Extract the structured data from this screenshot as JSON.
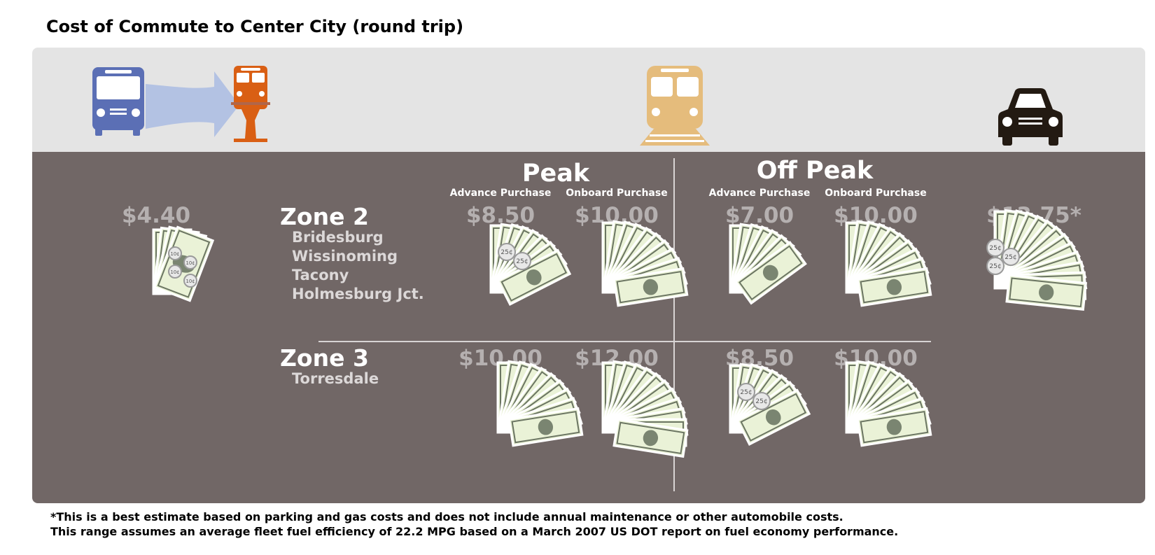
{
  "title": "Cost of Commute to Center City (round trip)",
  "icons": {
    "bus": "bus-icon",
    "trolley": "trolley-icon",
    "train": "regional-rail-icon",
    "car": "car-icon",
    "arrow": "transfer-arrow-icon"
  },
  "colors": {
    "bus": "#5b6fb5",
    "trolley": "#d95f14",
    "train": "#e5bc7c",
    "car": "#231a12",
    "panel_top": "#e4e4e4",
    "panel_main": "#716766",
    "bill": "#eaf2d7",
    "bill_border": "#6b7562"
  },
  "headers": {
    "peak": "Peak",
    "off_peak": "Off Peak",
    "advance_purchase": "Advance Purchase",
    "onboard_purchase": "Onboard Purchase"
  },
  "bus_cost": {
    "price": "$4.40",
    "bills": 4,
    "coins": [
      "10¢",
      "10¢",
      "10¢",
      "10¢"
    ]
  },
  "car_cost": {
    "price": "$13.75*",
    "bills": 13,
    "coins": [
      "25¢",
      "25¢",
      "25¢"
    ]
  },
  "zones": [
    {
      "name": "Zone 2",
      "stations": [
        "Bridesburg",
        "Wissinoming",
        "Tacony",
        "Holmesburg Jct."
      ],
      "fares": [
        {
          "period": "Peak",
          "purchase": "Advance Purchase",
          "price": "$8.50",
          "bills": 8,
          "coins": [
            "25¢",
            "25¢"
          ]
        },
        {
          "period": "Peak",
          "purchase": "Onboard Purchase",
          "price": "$10.00",
          "bills": 10,
          "coins": []
        },
        {
          "period": "Off Peak",
          "purchase": "Advance Purchase",
          "price": "$7.00",
          "bills": 7,
          "coins": []
        },
        {
          "period": "Off Peak",
          "purchase": "Onboard Purchase",
          "price": "$10.00",
          "bills": 10,
          "coins": []
        }
      ]
    },
    {
      "name": "Zone 3",
      "stations": [
        "Torresdale"
      ],
      "fares": [
        {
          "period": "Peak",
          "purchase": "Advance Purchase",
          "price": "$10.00",
          "bills": 10,
          "coins": []
        },
        {
          "period": "Peak",
          "purchase": "Onboard Purchase",
          "price": "$12.00",
          "bills": 12,
          "coins": []
        },
        {
          "period": "Off Peak",
          "purchase": "Advance Purchase",
          "price": "$8.50",
          "bills": 8,
          "coins": [
            "25¢",
            "25¢"
          ]
        },
        {
          "period": "Off Peak",
          "purchase": "Onboard Purchase",
          "price": "$10.00",
          "bills": 10,
          "coins": []
        }
      ]
    }
  ],
  "footnotes": [
    "*This is a best estimate based on parking and gas costs and does not include annual maintenance or other automobile costs.",
    "This range assumes an average fleet fuel efficiency of 22.2 MPG based on a March 2007 US DOT report on fuel economy performance."
  ]
}
